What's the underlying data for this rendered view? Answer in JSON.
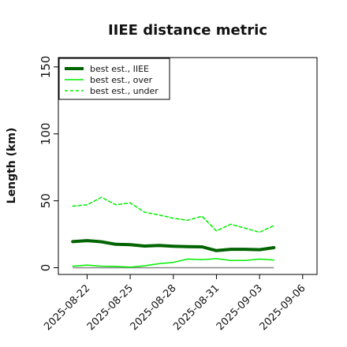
{
  "chart_data": {
    "type": "line",
    "title": "IIEE distance metric",
    "xlabel": "",
    "ylabel": "Length (km)",
    "x": [
      "2025-08-21",
      "2025-08-22",
      "2025-08-23",
      "2025-08-24",
      "2025-08-25",
      "2025-08-26",
      "2025-08-27",
      "2025-08-28",
      "2025-08-29",
      "2025-08-30",
      "2025-08-31",
      "2025-09-01",
      "2025-09-02",
      "2025-09-03",
      "2025-09-04"
    ],
    "xlim": [
      "2025-08-20",
      "2025-09-07"
    ],
    "ylim": [
      -5,
      157
    ],
    "yticks": [
      0,
      50,
      100,
      150
    ],
    "xticks": [
      "2025-08-22",
      "2025-08-25",
      "2025-08-28",
      "2025-08-31",
      "2025-09-03",
      "2025-09-06"
    ],
    "legend_position": "top-left",
    "grid": false,
    "series": [
      {
        "name": "best est., IIEE",
        "color": "#006400",
        "style": "solid",
        "width": "thick",
        "values": [
          19.5,
          20.3,
          19.4,
          17.5,
          17.2,
          16.2,
          16.6,
          16.1,
          15.8,
          15.6,
          12.8,
          13.8,
          13.8,
          13.5,
          15.0
        ]
      },
      {
        "name": "best est., over",
        "color": "#00ee00",
        "style": "solid",
        "width": "thin",
        "values": [
          1.2,
          2.0,
          1.2,
          1.0,
          0.5,
          1.5,
          3.0,
          4.0,
          6.5,
          6.0,
          6.8,
          5.4,
          5.4,
          6.5,
          5.8
        ]
      },
      {
        "name": "best est., under",
        "color": "#00ee00",
        "style": "dashed",
        "width": "thin",
        "values": [
          46.0,
          47.0,
          52.6,
          47.0,
          48.5,
          41.5,
          39.5,
          37.0,
          35.5,
          38.5,
          27.5,
          32.5,
          29.5,
          26.5,
          31.5
        ]
      }
    ],
    "reference_line": {
      "y": 0,
      "color": "#888888"
    }
  }
}
